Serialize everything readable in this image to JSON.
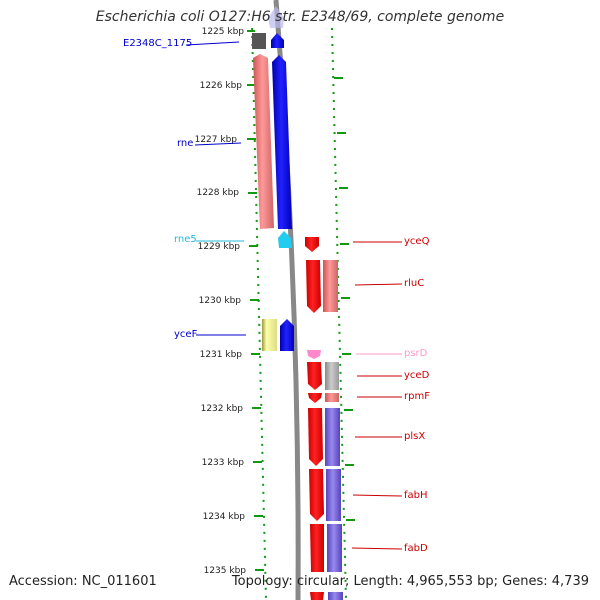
{
  "title": "Escherichia coli O127:H6 str. E2348/69, complete genome",
  "footer": {
    "accession": "Accession: NC_011601",
    "summary": "Topology: circular; Length: 4,965,553 bp; Genes: 4,739"
  },
  "colors": {
    "forward_cds": "#0000ee",
    "reverse_cds": "#ee0000",
    "forward_gene": "#ee7777",
    "reverse_gene_purple": "#7766dd",
    "rna": "#22ccee",
    "pseudo": "#ff88cc",
    "other": "#eeee99",
    "axis": "#888888",
    "tick": "#119911"
  },
  "axis_ticks": [
    "1225 kbp",
    "1226 kbp",
    "1227 kbp",
    "1228 kbp",
    "1229 kbp",
    "1230 kbp",
    "1231 kbp",
    "1232 kbp",
    "1233 kbp",
    "1234 kbp",
    "1235 kbp"
  ],
  "labels": {
    "left": [
      {
        "text": "E2348C_1175",
        "color": "#0000cc"
      },
      {
        "text": "rne",
        "color": "#0000cc"
      },
      {
        "text": "rne5",
        "color": "#22bbdd"
      },
      {
        "text": "yceF",
        "color": "#0000cc"
      }
    ],
    "right": [
      {
        "text": "yceQ",
        "color": "#cc0000"
      },
      {
        "text": "rluC",
        "color": "#cc0000"
      },
      {
        "text": "psrD",
        "color": "#ff99cc"
      },
      {
        "text": "yceD",
        "color": "#cc0000"
      },
      {
        "text": "rpmF",
        "color": "#cc0000"
      },
      {
        "text": "plsX",
        "color": "#cc0000"
      },
      {
        "text": "fabH",
        "color": "#cc0000"
      },
      {
        "text": "fabD",
        "color": "#cc0000"
      }
    ]
  }
}
